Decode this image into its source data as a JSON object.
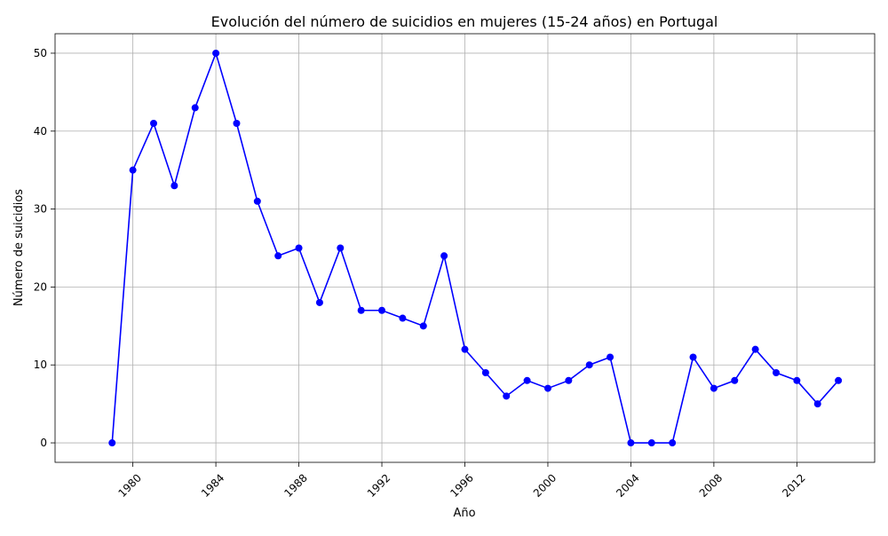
{
  "chart_data": {
    "type": "line",
    "title": "Evolución del número de suicidios en mujeres (15-24 años) en Portugal",
    "xlabel": "Año",
    "ylabel": "Número de suicidios",
    "xlim": [
      1976.25,
      2015.75
    ],
    "ylim": [
      -2.5,
      52.5
    ],
    "xticks": [
      1980,
      1984,
      1988,
      1992,
      1996,
      2000,
      2004,
      2008,
      2012
    ],
    "yticks": [
      0,
      10,
      20,
      30,
      40,
      50
    ],
    "grid": true,
    "series": [
      {
        "color": "#0000ff",
        "x": [
          1979,
          1980,
          1981,
          1982,
          1983,
          1984,
          1985,
          1986,
          1987,
          1988,
          1989,
          1990,
          1991,
          1992,
          1993,
          1994,
          1995,
          1996,
          1997,
          1998,
          1999,
          2000,
          2001,
          2002,
          2003,
          2004,
          2005,
          2006,
          2007,
          2008,
          2009,
          2010,
          2011,
          2012,
          2013,
          2014
        ],
        "values": [
          0,
          35,
          41,
          33,
          43,
          50,
          41,
          31,
          24,
          25,
          18,
          25,
          17,
          17,
          16,
          15,
          24,
          12,
          9,
          6,
          8,
          7,
          8,
          10,
          11,
          0,
          0,
          0,
          11,
          7,
          8,
          12,
          9,
          8,
          5,
          8
        ]
      }
    ]
  }
}
